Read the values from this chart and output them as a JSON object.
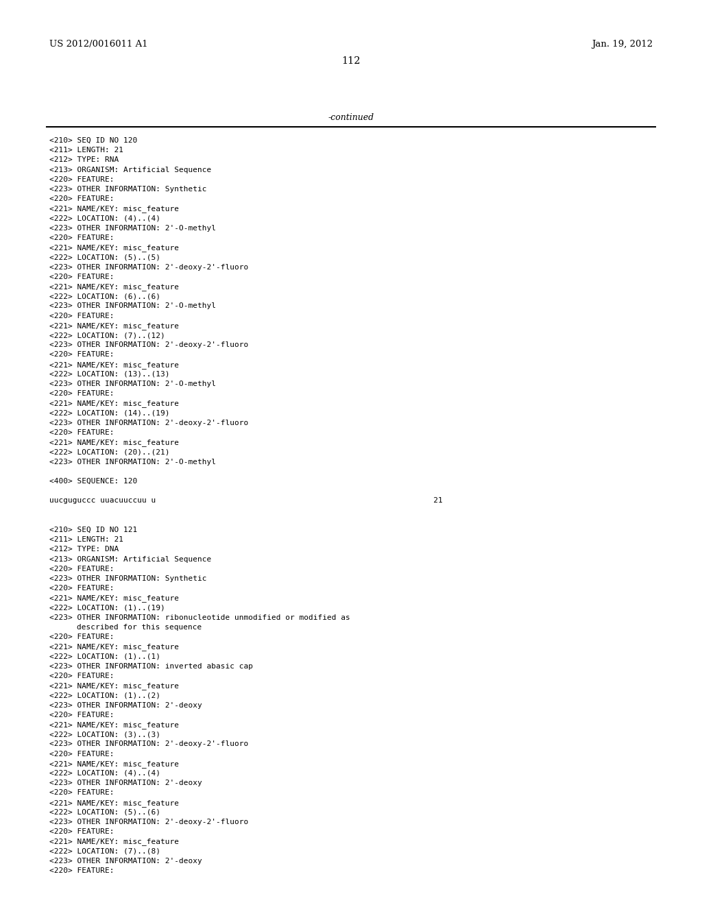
{
  "header_left": "US 2012/0016011 A1",
  "header_right": "Jan. 19, 2012",
  "page_number": "112",
  "continued_text": "-continued",
  "background_color": "#ffffff",
  "text_color": "#000000",
  "header_fontsize": 9.5,
  "pagenum_fontsize": 10.5,
  "continued_fontsize": 9.0,
  "mono_fontsize": 8.0,
  "lines": [
    "<210> SEQ ID NO 120",
    "<211> LENGTH: 21",
    "<212> TYPE: RNA",
    "<213> ORGANISM: Artificial Sequence",
    "<220> FEATURE:",
    "<223> OTHER INFORMATION: Synthetic",
    "<220> FEATURE:",
    "<221> NAME/KEY: misc_feature",
    "<222> LOCATION: (4)..(4)",
    "<223> OTHER INFORMATION: 2'-O-methyl",
    "<220> FEATURE:",
    "<221> NAME/KEY: misc_feature",
    "<222> LOCATION: (5)..(5)",
    "<223> OTHER INFORMATION: 2'-deoxy-2'-fluoro",
    "<220> FEATURE:",
    "<221> NAME/KEY: misc_feature",
    "<222> LOCATION: (6)..(6)",
    "<223> OTHER INFORMATION: 2'-O-methyl",
    "<220> FEATURE:",
    "<221> NAME/KEY: misc_feature",
    "<222> LOCATION: (7)..(12)",
    "<223> OTHER INFORMATION: 2'-deoxy-2'-fluoro",
    "<220> FEATURE:",
    "<221> NAME/KEY: misc_feature",
    "<222> LOCATION: (13)..(13)",
    "<223> OTHER INFORMATION: 2'-O-methyl",
    "<220> FEATURE:",
    "<221> NAME/KEY: misc_feature",
    "<222> LOCATION: (14)..(19)",
    "<223> OTHER INFORMATION: 2'-deoxy-2'-fluoro",
    "<220> FEATURE:",
    "<221> NAME/KEY: misc_feature",
    "<222> LOCATION: (20)..(21)",
    "<223> OTHER INFORMATION: 2'-O-methyl",
    "",
    "<400> SEQUENCE: 120",
    "",
    "uucguguccc uuacuuccuu u                                                            21",
    "",
    "",
    "<210> SEQ ID NO 121",
    "<211> LENGTH: 21",
    "<212> TYPE: DNA",
    "<213> ORGANISM: Artificial Sequence",
    "<220> FEATURE:",
    "<223> OTHER INFORMATION: Synthetic",
    "<220> FEATURE:",
    "<221> NAME/KEY: misc_feature",
    "<222> LOCATION: (1)..(19)",
    "<223> OTHER INFORMATION: ribonucleotide unmodified or modified as",
    "      described for this sequence",
    "<220> FEATURE:",
    "<221> NAME/KEY: misc_feature",
    "<222> LOCATION: (1)..(1)",
    "<223> OTHER INFORMATION: inverted abasic cap",
    "<220> FEATURE:",
    "<221> NAME/KEY: misc_feature",
    "<222> LOCATION: (1)..(2)",
    "<223> OTHER INFORMATION: 2'-deoxy",
    "<220> FEATURE:",
    "<221> NAME/KEY: misc_feature",
    "<222> LOCATION: (3)..(3)",
    "<223> OTHER INFORMATION: 2'-deoxy-2'-fluoro",
    "<220> FEATURE:",
    "<221> NAME/KEY: misc_feature",
    "<222> LOCATION: (4)..(4)",
    "<223> OTHER INFORMATION: 2'-deoxy",
    "<220> FEATURE:",
    "<221> NAME/KEY: misc_feature",
    "<222> LOCATION: (5)..(6)",
    "<223> OTHER INFORMATION: 2'-deoxy-2'-fluoro",
    "<220> FEATURE:",
    "<221> NAME/KEY: misc_feature",
    "<222> LOCATION: (7)..(8)",
    "<223> OTHER INFORMATION: 2'-deoxy",
    "<220> FEATURE:"
  ]
}
